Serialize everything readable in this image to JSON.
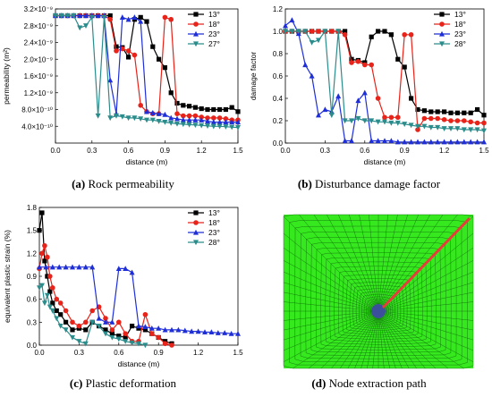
{
  "chart_data": [
    {
      "type": "line",
      "caption_letter": "(a)",
      "caption_text": "Rock permeability",
      "xlabel": "distance (m)",
      "ylabel": "permeability (m²)",
      "xlim": [
        0,
        1.5
      ],
      "ylim": [
        0,
        3.2e-09
      ],
      "xticks": [
        "0.0",
        "0.3",
        "0.6",
        "0.9",
        "1.2",
        "1.5"
      ],
      "xtick_values": [
        0,
        0.3,
        0.6,
        0.9,
        1.2,
        1.5
      ],
      "yticks": [
        "4.0×10⁻¹⁰",
        "8.0×10⁻¹⁰",
        "1.2×10⁻⁹",
        "1.6×10⁻⁹",
        "2.0×10⁻⁹",
        "2.4×10⁻⁹",
        "2.8×10⁻⁹",
        "3.2×10⁻⁹"
      ],
      "ytick_values": [
        4e-10,
        8e-10,
        1.2e-09,
        1.6e-09,
        2e-09,
        2.4e-09,
        2.8e-09,
        3.2e-09
      ],
      "legend_position": "top-right",
      "series": [
        {
          "name": "13°",
          "color": "#000000",
          "marker": "square",
          "x": [
            0,
            0.05,
            0.1,
            0.15,
            0.2,
            0.25,
            0.3,
            0.35,
            0.4,
            0.45,
            0.5,
            0.55,
            0.6,
            0.65,
            0.7,
            0.75,
            0.8,
            0.85,
            0.9,
            0.95,
            1.0,
            1.05,
            1.1,
            1.15,
            1.2,
            1.25,
            1.3,
            1.35,
            1.4,
            1.45,
            1.5
          ],
          "y": [
            3.04e-09,
            3.04e-09,
            3.04e-09,
            3.04e-09,
            3.04e-09,
            3.04e-09,
            3.04e-09,
            3.04e-09,
            3.04e-09,
            3.04e-09,
            2.3e-09,
            2.28e-09,
            2.05e-09,
            2.95e-09,
            3e-09,
            2.9e-09,
            2.3e-09,
            2e-09,
            1.8e-09,
            1.2e-09,
            9.5e-10,
            9e-10,
            8.8e-10,
            8.5e-10,
            8.2e-10,
            8e-10,
            8e-10,
            8e-10,
            8e-10,
            8.5e-10,
            7.5e-10
          ]
        },
        {
          "name": "18°",
          "color": "#e8231a",
          "marker": "circle",
          "x": [
            0,
            0.05,
            0.1,
            0.15,
            0.2,
            0.25,
            0.3,
            0.35,
            0.4,
            0.45,
            0.5,
            0.55,
            0.6,
            0.65,
            0.7,
            0.75,
            0.8,
            0.85,
            0.9,
            0.95,
            1.0,
            1.05,
            1.1,
            1.15,
            1.2,
            1.25,
            1.3,
            1.35,
            1.4,
            1.45,
            1.5
          ],
          "y": [
            3.04e-09,
            3.04e-09,
            3.04e-09,
            3.04e-09,
            3.04e-09,
            3.04e-09,
            3.04e-09,
            3.04e-09,
            3.04e-09,
            2.95e-09,
            2.2e-09,
            2.25e-09,
            2.2e-09,
            2.1e-09,
            9e-10,
            7.5e-10,
            7e-10,
            7e-10,
            3e-09,
            2.95e-09,
            7e-10,
            6.5e-10,
            6.5e-10,
            6.5e-10,
            6.2e-10,
            6e-10,
            6e-10,
            6e-10,
            5.8e-10,
            5.5e-10,
            5.5e-10
          ]
        },
        {
          "name": "23°",
          "color": "#1f2fd8",
          "marker": "triangle-up",
          "x": [
            0,
            0.05,
            0.1,
            0.15,
            0.2,
            0.25,
            0.3,
            0.35,
            0.4,
            0.45,
            0.5,
            0.55,
            0.6,
            0.65,
            0.7,
            0.75,
            0.8,
            0.85,
            0.9,
            0.95,
            1.0,
            1.05,
            1.1,
            1.15,
            1.2,
            1.25,
            1.3,
            1.35,
            1.4,
            1.45,
            1.5
          ],
          "y": [
            3.04e-09,
            3.04e-09,
            3.04e-09,
            3.04e-09,
            3.04e-09,
            3.04e-09,
            3.04e-09,
            3.04e-09,
            3.04e-09,
            1.5e-09,
            7e-10,
            3e-09,
            2.95e-09,
            3e-09,
            2.9e-09,
            7.5e-10,
            7.2e-10,
            7e-10,
            6.8e-10,
            6e-10,
            5.8e-10,
            5.5e-10,
            5.5e-10,
            5.5e-10,
            5.5e-10,
            5.2e-10,
            5e-10,
            5e-10,
            5e-10,
            5e-10,
            5e-10
          ]
        },
        {
          "name": "27°",
          "color": "#2b8c8c",
          "marker": "triangle-down",
          "x": [
            0,
            0.05,
            0.1,
            0.15,
            0.2,
            0.25,
            0.3,
            0.35,
            0.4,
            0.45,
            0.5,
            0.55,
            0.6,
            0.65,
            0.7,
            0.75,
            0.8,
            0.85,
            0.9,
            0.95,
            1.0,
            1.05,
            1.1,
            1.15,
            1.2,
            1.25,
            1.3,
            1.35,
            1.4,
            1.45,
            1.5
          ],
          "y": [
            3.04e-09,
            3.04e-09,
            3.04e-09,
            3.04e-09,
            2.75e-09,
            2.8e-09,
            3e-09,
            6.5e-10,
            3e-09,
            6e-10,
            6.5e-10,
            6.3e-10,
            6e-10,
            6e-10,
            5.8e-10,
            5.5e-10,
            5.5e-10,
            5.2e-10,
            5e-10,
            4.8e-10,
            4.6e-10,
            4.5e-10,
            4.4e-10,
            4.3e-10,
            4.2e-10,
            4.1e-10,
            4e-10,
            4e-10,
            3.9e-10,
            3.8e-10,
            3.7e-10
          ]
        }
      ]
    },
    {
      "type": "line",
      "caption_letter": "(b)",
      "caption_text": "Disturbance damage factor",
      "xlabel": "distance (m)",
      "ylabel": "damage factor",
      "xlim": [
        0,
        1.5
      ],
      "ylim": [
        0,
        1.2
      ],
      "xticks": [
        "0.0",
        "0.3",
        "0.6",
        "0.9",
        "1.2",
        "1.5"
      ],
      "xtick_values": [
        0,
        0.3,
        0.6,
        0.9,
        1.2,
        1.5
      ],
      "yticks": [
        "0.0",
        "0.2",
        "0.4",
        "0.6",
        "0.8",
        "1.0",
        "1.2"
      ],
      "ytick_values": [
        0,
        0.2,
        0.4,
        0.6,
        0.8,
        1.0,
        1.2
      ],
      "legend_position": "top-right",
      "series": [
        {
          "name": "13°",
          "color": "#000000",
          "marker": "square",
          "x": [
            0,
            0.05,
            0.1,
            0.15,
            0.2,
            0.25,
            0.3,
            0.35,
            0.4,
            0.45,
            0.5,
            0.55,
            0.6,
            0.65,
            0.7,
            0.75,
            0.8,
            0.85,
            0.9,
            0.95,
            1.0,
            1.05,
            1.1,
            1.15,
            1.2,
            1.25,
            1.3,
            1.35,
            1.4,
            1.45,
            1.5
          ],
          "y": [
            1.0,
            1.0,
            1.0,
            1.0,
            1.0,
            1.0,
            1.0,
            1.0,
            1.0,
            1.0,
            0.75,
            0.74,
            0.72,
            0.95,
            1.0,
            1.0,
            0.97,
            0.75,
            0.68,
            0.4,
            0.3,
            0.29,
            0.28,
            0.28,
            0.28,
            0.27,
            0.27,
            0.27,
            0.27,
            0.3,
            0.25
          ]
        },
        {
          "name": "18°",
          "color": "#e8231a",
          "marker": "circle",
          "x": [
            0,
            0.05,
            0.1,
            0.15,
            0.2,
            0.25,
            0.3,
            0.35,
            0.4,
            0.45,
            0.5,
            0.55,
            0.6,
            0.65,
            0.7,
            0.75,
            0.8,
            0.85,
            0.9,
            0.95,
            1.0,
            1.05,
            1.1,
            1.15,
            1.2,
            1.25,
            1.3,
            1.35,
            1.4,
            1.45,
            1.5
          ],
          "y": [
            1.0,
            1.0,
            1.0,
            1.0,
            1.0,
            1.0,
            1.0,
            1.0,
            1.0,
            0.97,
            0.72,
            0.73,
            0.7,
            0.7,
            0.4,
            0.23,
            0.23,
            0.23,
            0.97,
            0.97,
            0.12,
            0.22,
            0.22,
            0.22,
            0.21,
            0.2,
            0.2,
            0.2,
            0.19,
            0.18,
            0.18
          ]
        },
        {
          "name": "23°",
          "color": "#1f2fd8",
          "marker": "triangle-up",
          "x": [
            0,
            0.05,
            0.1,
            0.15,
            0.2,
            0.25,
            0.3,
            0.35,
            0.4,
            0.45,
            0.5,
            0.55,
            0.6,
            0.65,
            0.7,
            0.75,
            0.8,
            0.85,
            0.9,
            0.95,
            1.0,
            1.05,
            1.1,
            1.15,
            1.2,
            1.25,
            1.3,
            1.35,
            1.4,
            1.45,
            1.5
          ],
          "y": [
            1.05,
            1.1,
            0.98,
            0.7,
            0.6,
            0.25,
            0.3,
            0.28,
            0.42,
            0.02,
            0.02,
            0.38,
            0.45,
            0.02,
            0.02,
            0.02,
            0.02,
            0.01,
            0.01,
            0.01,
            0.01,
            0.01,
            0.01,
            0.01,
            0.01,
            0.01,
            0.01,
            0.01,
            0.01,
            0.01,
            0.01
          ]
        },
        {
          "name": "28°",
          "color": "#2b8c8c",
          "marker": "triangle-down",
          "x": [
            0,
            0.05,
            0.1,
            0.15,
            0.2,
            0.25,
            0.3,
            0.35,
            0.4,
            0.45,
            0.5,
            0.55,
            0.6,
            0.65,
            0.7,
            0.75,
            0.8,
            0.85,
            0.9,
            0.95,
            1.0,
            1.05,
            1.1,
            1.15,
            1.2,
            1.25,
            1.3,
            1.35,
            1.4,
            1.45,
            1.5
          ],
          "y": [
            1.0,
            1.0,
            1.0,
            1.0,
            0.9,
            0.92,
            1.0,
            0.25,
            1.0,
            0.2,
            0.2,
            0.22,
            0.2,
            0.2,
            0.19,
            0.19,
            0.18,
            0.18,
            0.17,
            0.16,
            0.15,
            0.15,
            0.14,
            0.14,
            0.13,
            0.13,
            0.13,
            0.12,
            0.12,
            0.12,
            0.11
          ]
        }
      ]
    },
    {
      "type": "line",
      "caption_letter": "(c)",
      "caption_text": "Plastic deformation",
      "xlabel": "distance (m)",
      "ylabel": "equivalent plastic strain (%)",
      "xlim": [
        0,
        1.5
      ],
      "ylim": [
        0,
        1.8
      ],
      "xticks": [
        "0.0",
        "0.3",
        "0.6",
        "0.9",
        "1.2",
        "1.5"
      ],
      "xtick_values": [
        0,
        0.3,
        0.6,
        0.9,
        1.2,
        1.5
      ],
      "yticks": [
        "0.0",
        "0.3",
        "0.6",
        "0.9",
        "1.2",
        "1.5",
        "1.8"
      ],
      "ytick_values": [
        0,
        0.3,
        0.6,
        0.9,
        1.2,
        1.5,
        1.8
      ],
      "legend_position": "top-right",
      "series": [
        {
          "name": "13°",
          "color": "#000000",
          "marker": "square",
          "x": [
            0,
            0.02,
            0.04,
            0.06,
            0.08,
            0.1,
            0.13,
            0.16,
            0.2,
            0.25,
            0.3,
            0.35,
            0.4,
            0.45,
            0.5,
            0.55,
            0.6,
            0.65,
            0.7,
            0.75,
            0.8,
            0.85,
            0.9,
            0.95,
            1.0
          ],
          "y": [
            1.5,
            1.73,
            1.1,
            0.9,
            0.7,
            0.55,
            0.45,
            0.4,
            0.3,
            0.2,
            0.22,
            0.2,
            0.3,
            0.25,
            0.2,
            0.15,
            0.12,
            0.1,
            0.25,
            0.22,
            0.2,
            0.15,
            0.1,
            0.05,
            0.02
          ]
        },
        {
          "name": "18°",
          "color": "#e8231a",
          "marker": "circle",
          "x": [
            0,
            0.02,
            0.04,
            0.06,
            0.08,
            0.1,
            0.13,
            0.16,
            0.2,
            0.25,
            0.3,
            0.35,
            0.4,
            0.45,
            0.5,
            0.55,
            0.6,
            0.65,
            0.7,
            0.75,
            0.8,
            0.85,
            0.9,
            0.95,
            1.0
          ],
          "y": [
            1.0,
            1.2,
            1.3,
            1.15,
            0.9,
            0.75,
            0.6,
            0.55,
            0.45,
            0.3,
            0.25,
            0.3,
            0.45,
            0.5,
            0.35,
            0.2,
            0.3,
            0.15,
            0.05,
            0.05,
            0.4,
            0.15,
            0.1,
            0.02,
            0.0
          ]
        },
        {
          "name": "23°",
          "color": "#1f2fd8",
          "marker": "triangle-up",
          "x": [
            0,
            0.05,
            0.1,
            0.15,
            0.2,
            0.25,
            0.3,
            0.35,
            0.4,
            0.45,
            0.5,
            0.55,
            0.6,
            0.65,
            0.7,
            0.75,
            0.8,
            0.85,
            0.9,
            0.95,
            1.0,
            1.05,
            1.1,
            1.15,
            1.2,
            1.25,
            1.3,
            1.35,
            1.4,
            1.45,
            1.5
          ],
          "y": [
            1.02,
            1.02,
            1.02,
            1.02,
            1.02,
            1.02,
            1.02,
            1.02,
            1.02,
            0.35,
            0.3,
            0.3,
            1.0,
            1.0,
            0.95,
            0.25,
            0.24,
            0.22,
            0.22,
            0.2,
            0.2,
            0.2,
            0.19,
            0.18,
            0.18,
            0.17,
            0.17,
            0.16,
            0.16,
            0.15,
            0.15
          ]
        },
        {
          "name": "28°",
          "color": "#2b8c8c",
          "marker": "triangle-down",
          "x": [
            0,
            0.02,
            0.04,
            0.06,
            0.08,
            0.1,
            0.13,
            0.16,
            0.2,
            0.25,
            0.3,
            0.35,
            0.4,
            0.45,
            0.5,
            0.55,
            0.6,
            0.65,
            0.7,
            0.75,
            0.8
          ],
          "y": [
            0.75,
            0.78,
            0.55,
            0.65,
            0.5,
            0.45,
            0.35,
            0.25,
            0.2,
            0.1,
            0.05,
            0.02,
            0.3,
            0.25,
            0.15,
            0.1,
            0.08,
            0.05,
            0.03,
            0.02,
            0.0
          ]
        }
      ]
    }
  ],
  "mesh_panel": {
    "caption_letter": "(d)",
    "caption_text": "Node extraction path",
    "background_color": "#36e81e",
    "line_color": "#0c5f0c",
    "borehole_color": "#3c4f9a",
    "path_color": "#e83c3c"
  }
}
